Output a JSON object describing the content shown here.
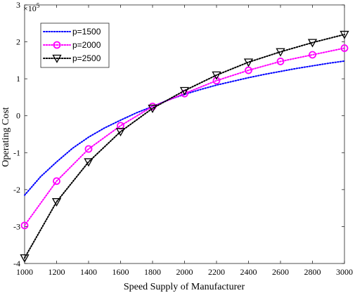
{
  "chart_data": {
    "type": "line",
    "xlabel": "Speed Supply of Manufacturer",
    "ylabel": "Operating Cost",
    "scale_exponent_label": "×10",
    "scale_exponent_power": "5",
    "xlim": [
      1000,
      3000
    ],
    "ylim": [
      -4,
      3
    ],
    "x_ticks": [
      1000,
      1200,
      1400,
      1600,
      1800,
      2000,
      2200,
      2400,
      2600,
      2800,
      3000
    ],
    "x_tick_labels": [
      "1000",
      "1200",
      "1400",
      "1600",
      "1800",
      "2000",
      "2200",
      "2400",
      "2600",
      "2800",
      "3000"
    ],
    "y_ticks": [
      -4,
      -3,
      -2,
      -1,
      0,
      1,
      2,
      3
    ],
    "y_tick_labels": [
      "-4",
      "-3",
      "-2",
      "-1",
      "0",
      "1",
      "2",
      "3"
    ],
    "grid": false,
    "legend_position": "top-left",
    "x": [
      1000,
      1200,
      1400,
      1600,
      1800,
      2000,
      2200,
      2400,
      2600,
      2800,
      3000
    ],
    "series": [
      {
        "name": "p=1500",
        "color": "#0000ff",
        "marker": "none",
        "x": [
          1000,
          1100,
          1200,
          1300,
          1400,
          1500,
          1600,
          1700,
          1800,
          1900,
          2000,
          2100,
          2200,
          2300,
          2400,
          2500,
          2600,
          2700,
          2800,
          2900,
          3000
        ],
        "values": [
          -2.15,
          -1.65,
          -1.25,
          -0.88,
          -0.58,
          -0.33,
          -0.12,
          0.08,
          0.25,
          0.43,
          0.58,
          0.71,
          0.83,
          0.93,
          1.03,
          1.12,
          1.2,
          1.28,
          1.35,
          1.42,
          1.48
        ]
      },
      {
        "name": "p=2000",
        "color": "#ff00ff",
        "marker": "circle",
        "x": [
          1000,
          1200,
          1400,
          1600,
          1800,
          2000,
          2200,
          2400,
          2600,
          2800,
          3000
        ],
        "values": [
          -2.97,
          -1.77,
          -0.9,
          -0.27,
          0.25,
          0.6,
          0.95,
          1.23,
          1.47,
          1.65,
          1.83
        ]
      },
      {
        "name": "p=2500",
        "color": "#000000",
        "marker": "triangle-down",
        "x": [
          1000,
          1200,
          1400,
          1600,
          1800,
          2000,
          2200,
          2400,
          2600,
          2800,
          3000
        ],
        "values": [
          -3.85,
          -2.33,
          -1.25,
          -0.43,
          0.2,
          0.68,
          1.1,
          1.45,
          1.73,
          1.98,
          2.2
        ]
      }
    ]
  }
}
